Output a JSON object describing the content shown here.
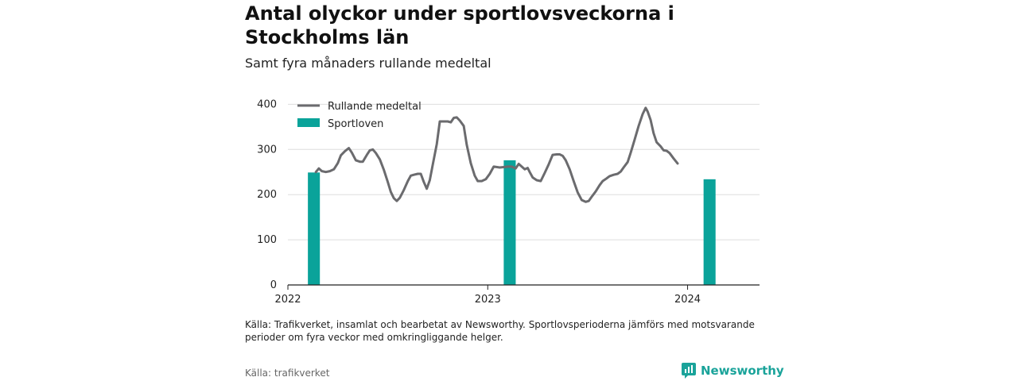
{
  "title": "Antal olyckor under sportlovsveckorna i Stockholms län",
  "subtitle": "Samt fyra månaders rullande medeltal",
  "note": "Källa: Trafikverket, insamlat och bearbetat av Newsworthy. Sportlovsperioderna jämförs med motsvarande perioder om fyra veckor med omkringliggande helger.",
  "source": "Källa: trafikverket",
  "brand": "Newsworthy",
  "colors": {
    "line": "#6b6b6e",
    "bar": "#0aa39a",
    "grid": "#dddddd",
    "brand": "#1aa39a"
  },
  "chart_data": {
    "type": "bar+line",
    "xlim": [
      2022.0,
      2024.36
    ],
    "ylim": [
      0,
      420
    ],
    "yticks": [
      0,
      100,
      200,
      300,
      400
    ],
    "xticks": [
      {
        "value": 2022.0,
        "label": "2022"
      },
      {
        "value": 2023.0,
        "label": "2023"
      },
      {
        "value": 2024.0,
        "label": "2024"
      }
    ],
    "legend": {
      "placement": "top-left",
      "line_label": "Rullande medeltal",
      "bar_label": "Sportloven"
    },
    "bars": {
      "name": "Sportloven",
      "x": [
        2022.13,
        2023.11,
        2024.11
      ],
      "values": [
        249,
        276,
        234
      ],
      "width_years": 0.06
    },
    "line": {
      "name": "Rullande medeltal",
      "points": [
        [
          2022.14,
          250
        ],
        [
          2022.155,
          258
        ],
        [
          2022.17,
          252
        ],
        [
          2022.19,
          250
        ],
        [
          2022.21,
          252
        ],
        [
          2022.23,
          256
        ],
        [
          2022.25,
          270
        ],
        [
          2022.265,
          287
        ],
        [
          2022.285,
          296
        ],
        [
          2022.305,
          303
        ],
        [
          2022.32,
          293
        ],
        [
          2022.34,
          276
        ],
        [
          2022.36,
          273
        ],
        [
          2022.375,
          273
        ],
        [
          2022.395,
          288
        ],
        [
          2022.41,
          298
        ],
        [
          2022.425,
          300
        ],
        [
          2022.44,
          292
        ],
        [
          2022.46,
          278
        ],
        [
          2022.48,
          255
        ],
        [
          2022.5,
          228
        ],
        [
          2022.515,
          206
        ],
        [
          2022.53,
          192
        ],
        [
          2022.545,
          186
        ],
        [
          2022.56,
          193
        ],
        [
          2022.58,
          210
        ],
        [
          2022.6,
          230
        ],
        [
          2022.615,
          242
        ],
        [
          2022.63,
          244
        ],
        [
          2022.65,
          246
        ],
        [
          2022.665,
          246
        ],
        [
          2022.68,
          228
        ],
        [
          2022.695,
          213
        ],
        [
          2022.71,
          232
        ],
        [
          2022.725,
          267
        ],
        [
          2022.745,
          312
        ],
        [
          2022.76,
          362
        ],
        [
          2022.78,
          362
        ],
        [
          2022.8,
          362
        ],
        [
          2022.815,
          360
        ],
        [
          2022.83,
          370
        ],
        [
          2022.845,
          371
        ],
        [
          2022.86,
          364
        ],
        [
          2022.88,
          352
        ],
        [
          2022.895,
          310
        ],
        [
          2022.915,
          270
        ],
        [
          2022.935,
          242
        ],
        [
          2022.95,
          230
        ],
        [
          2022.97,
          230
        ],
        [
          2022.99,
          234
        ],
        [
          2023.01,
          246
        ],
        [
          2023.03,
          262
        ],
        [
          2023.06,
          260
        ],
        [
          2023.08,
          261
        ],
        [
          2023.1,
          262
        ],
        [
          2023.12,
          262
        ],
        [
          2023.14,
          258
        ],
        [
          2023.155,
          268
        ],
        [
          2023.17,
          262
        ],
        [
          2023.185,
          256
        ],
        [
          2023.2,
          259
        ],
        [
          2023.21,
          250
        ],
        [
          2023.225,
          238
        ],
        [
          2023.245,
          232
        ],
        [
          2023.265,
          230
        ],
        [
          2023.285,
          248
        ],
        [
          2023.305,
          267
        ],
        [
          2023.325,
          288
        ],
        [
          2023.345,
          289
        ],
        [
          2023.36,
          289
        ],
        [
          2023.375,
          286
        ],
        [
          2023.39,
          276
        ],
        [
          2023.41,
          256
        ],
        [
          2023.43,
          230
        ],
        [
          2023.45,
          205
        ],
        [
          2023.47,
          188
        ],
        [
          2023.49,
          184
        ],
        [
          2023.505,
          186
        ],
        [
          2023.52,
          195
        ],
        [
          2023.54,
          207
        ],
        [
          2023.56,
          221
        ],
        [
          2023.575,
          230
        ],
        [
          2023.595,
          236
        ],
        [
          2023.61,
          241
        ],
        [
          2023.63,
          244
        ],
        [
          2023.65,
          246
        ],
        [
          2023.665,
          251
        ],
        [
          2023.68,
          260
        ],
        [
          2023.7,
          272
        ],
        [
          2023.715,
          292
        ],
        [
          2023.735,
          322
        ],
        [
          2023.755,
          352
        ],
        [
          2023.775,
          378
        ],
        [
          2023.79,
          392
        ],
        [
          2023.8,
          384
        ],
        [
          2023.815,
          365
        ],
        [
          2023.83,
          336
        ],
        [
          2023.845,
          316
        ],
        [
          2023.865,
          307
        ],
        [
          2023.88,
          298
        ],
        [
          2023.895,
          297
        ],
        [
          2023.91,
          292
        ],
        [
          2023.93,
          280
        ],
        [
          2023.95,
          269
        ]
      ]
    }
  }
}
